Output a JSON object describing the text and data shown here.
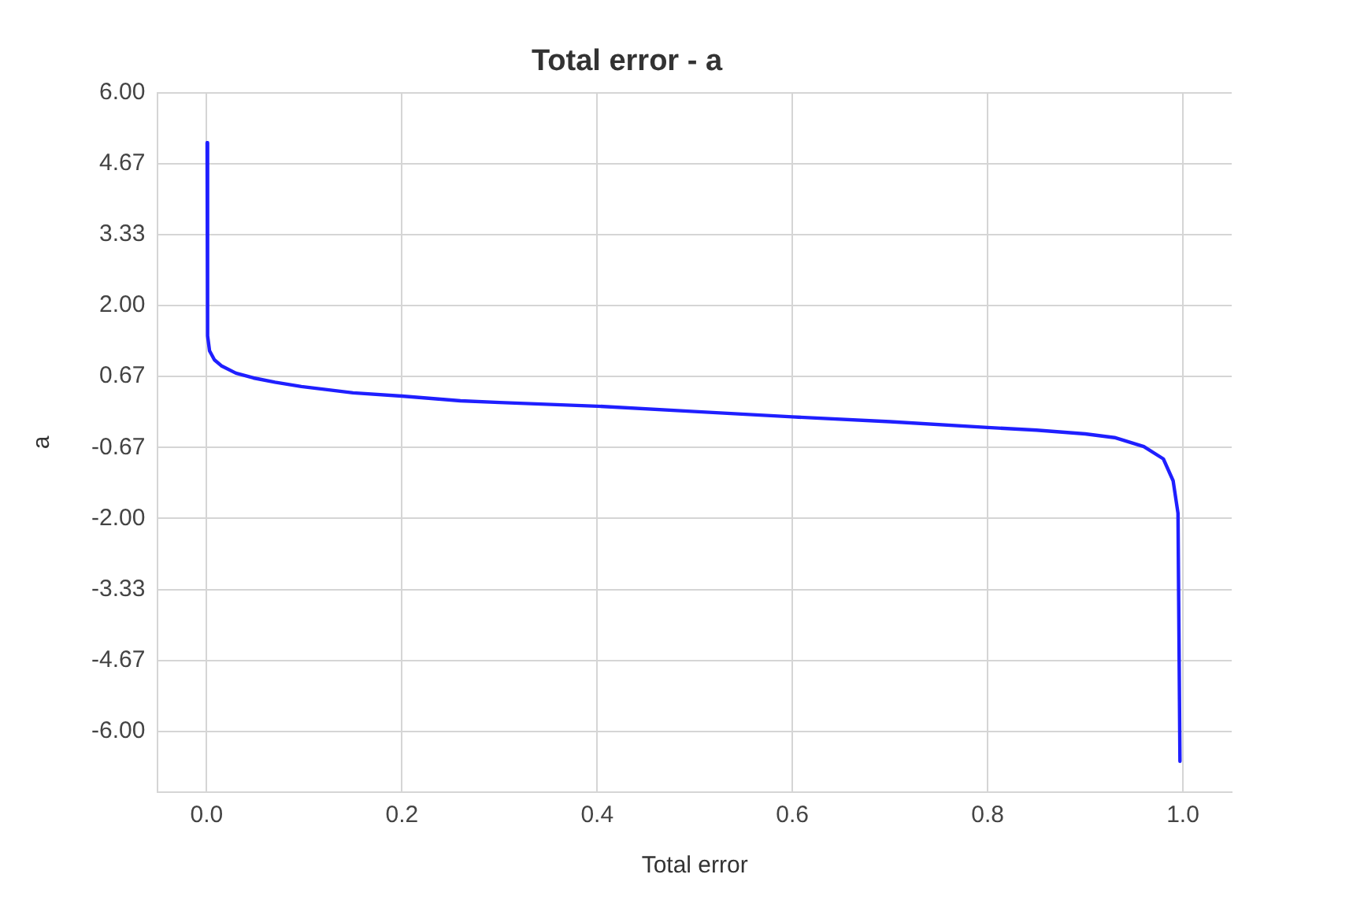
{
  "chart_data": {
    "type": "line",
    "title": "Total error - a",
    "xlabel": "Total error",
    "ylabel": "a",
    "x": [
      0.0005,
      0.001,
      0.003,
      0.008,
      0.015,
      0.03,
      0.048,
      0.07,
      0.097,
      0.15,
      0.2,
      0.26,
      0.3,
      0.4,
      0.5,
      0.6,
      0.7,
      0.8,
      0.85,
      0.9,
      0.93,
      0.96,
      0.98,
      0.99,
      0.995,
      0.997
    ],
    "series": [
      {
        "color": "#1f1fff",
        "values": [
          5.06,
          1.43,
          1.15,
          0.98,
          0.87,
          0.73,
          0.64,
          0.56,
          0.48,
          0.36,
          0.3,
          0.21,
          0.18,
          0.11,
          0.01,
          -0.09,
          -0.18,
          -0.29,
          -0.34,
          -0.41,
          -0.48,
          -0.65,
          -0.88,
          -1.29,
          -1.9,
          -6.56
        ]
      }
    ],
    "xlim": [
      -0.05,
      1.05
    ],
    "xticks": [
      {
        "value": 0,
        "label": "0.0"
      },
      {
        "value": 0.2,
        "label": "0.2"
      },
      {
        "value": 0.4,
        "label": "0.4"
      },
      {
        "value": 0.6,
        "label": "0.6"
      },
      {
        "value": 0.8,
        "label": "0.8"
      },
      {
        "value": 1,
        "label": "1.0"
      }
    ],
    "ylim": [
      -7.14,
      6
    ],
    "yticks": [
      {
        "value": 6,
        "label": "6.00"
      },
      {
        "value": 4.667,
        "label": "4.67"
      },
      {
        "value": 3.333,
        "label": "3.33"
      },
      {
        "value": 2,
        "label": "2.00"
      },
      {
        "value": 0.667,
        "label": "0.67"
      },
      {
        "value": -0.667,
        "label": "-0.67"
      },
      {
        "value": -2,
        "label": "-2.00"
      },
      {
        "value": -3.333,
        "label": "-3.33"
      },
      {
        "value": -4.667,
        "label": "-4.67"
      },
      {
        "value": -6,
        "label": "-6.00"
      }
    ],
    "grid": true,
    "marker": "none",
    "line_style": "solid"
  }
}
